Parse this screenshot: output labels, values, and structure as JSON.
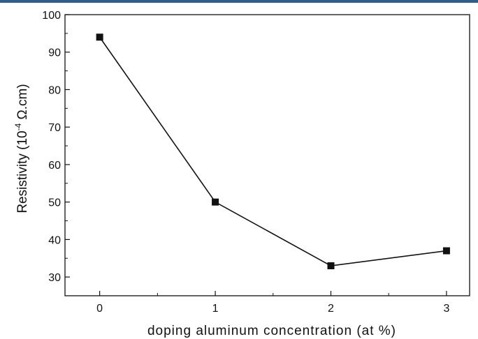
{
  "chart_data": {
    "type": "line",
    "xlabel": "doping aluminum concentration (at %)",
    "ylabel": "Resistivity (10",
    "ylabel_exp": "-4",
    "ylabel_unit": " Ω.cm)",
    "xlim": [
      -0.3,
      3.2
    ],
    "ylim": [
      25,
      100
    ],
    "x_ticks": [
      0,
      1,
      2,
      3
    ],
    "y_ticks": [
      30,
      40,
      50,
      60,
      70,
      80,
      90,
      100
    ],
    "grid": false,
    "series": [
      {
        "x": [
          0,
          1,
          2,
          3
        ],
        "values": [
          94,
          50,
          33,
          37
        ]
      }
    ]
  }
}
